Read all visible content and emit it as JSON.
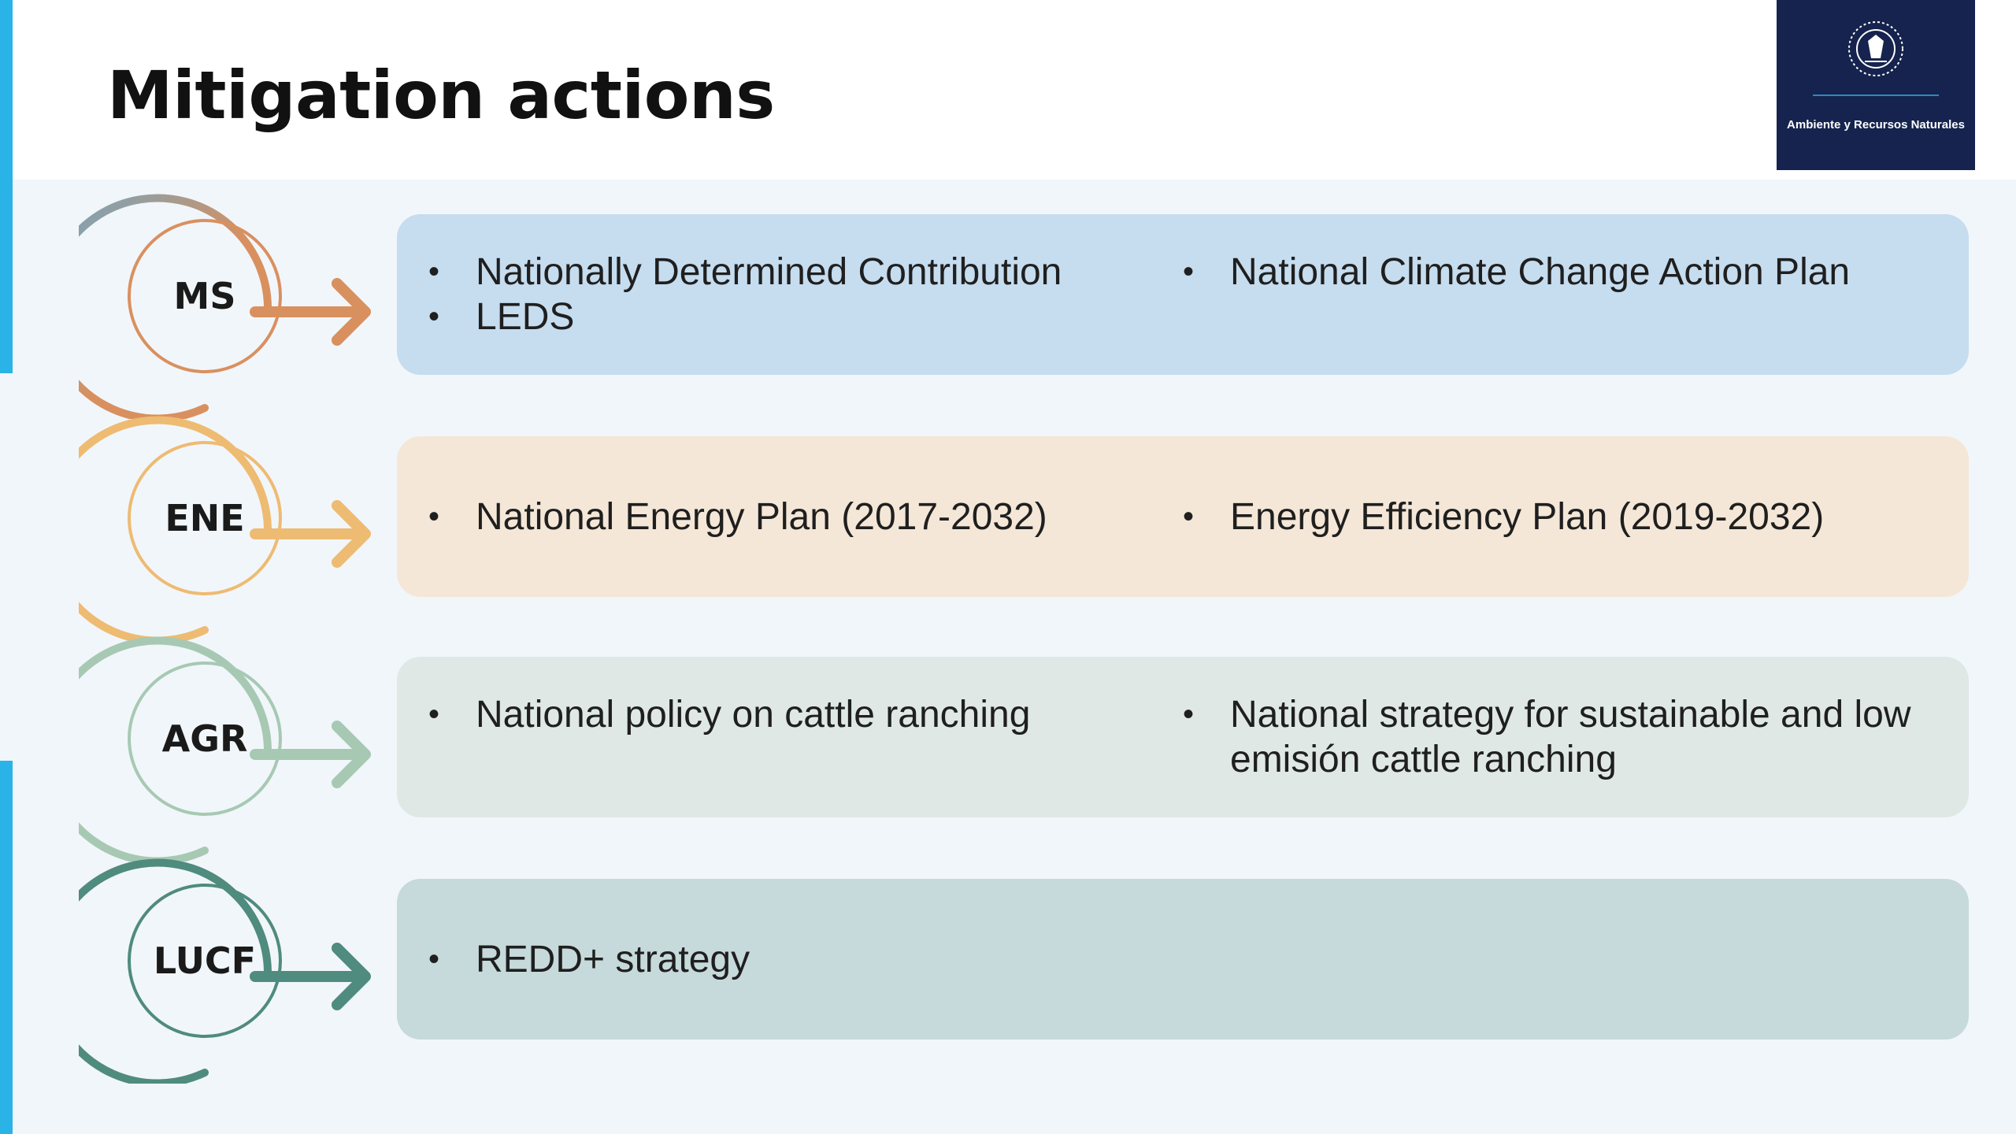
{
  "slide": {
    "title": "Mitigation actions",
    "logo_text": "Ambiente y Recursos Naturales"
  },
  "colors": {
    "accent_bar": "#29b3e6",
    "logo_bg": "#15234e"
  },
  "rows": [
    {
      "code": "MS",
      "color": "#d9905f",
      "color2": "#6ea6c4",
      "card_bg": "#c6dcef",
      "col1": [
        "Nationally Determined Contribution",
        "LEDS"
      ],
      "col2": [
        "National Climate Change Action Plan"
      ]
    },
    {
      "code": "ENE",
      "color": "#eebb72",
      "color2": "#eebb72",
      "card_bg": "#f4e7d7",
      "col1": [
        "National Energy Plan (2017-2032)"
      ],
      "col2": [
        "Energy Efficiency Plan (2019-2032)"
      ]
    },
    {
      "code": "AGR",
      "color": "#a7c9b3",
      "color2": "#a7c9b3",
      "card_bg": "#dfe8e5",
      "col1": [
        "National policy on cattle ranching"
      ],
      "col2": [
        "National strategy for sustainable and low emisión cattle ranching"
      ]
    },
    {
      "code": "LUCF",
      "color": "#4f8b7e",
      "color2": "#4f8b7e",
      "card_bg": "#c6d9db",
      "col1": [
        "REDD+ strategy"
      ],
      "col2": []
    }
  ]
}
